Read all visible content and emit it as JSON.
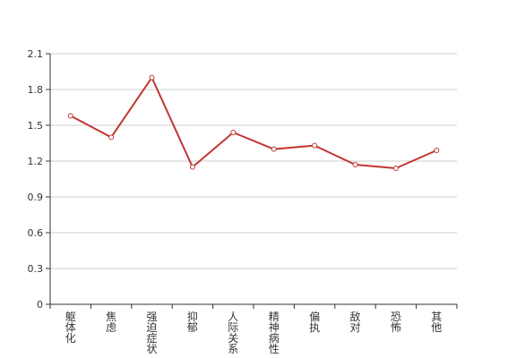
{
  "chart_data": {
    "type": "line",
    "title": "",
    "xlabel": "",
    "ylabel": "",
    "categories": [
      "躯体化",
      "焦虑",
      "强迫症状",
      "抑郁",
      "人际关系敏感",
      "精神病性",
      "偏执",
      "敌对",
      "恐怖",
      "其他"
    ],
    "series": [
      {
        "values": [
          1.58,
          1.4,
          1.9,
          1.15,
          1.44,
          1.3,
          1.33,
          1.17,
          1.14,
          1.29
        ]
      }
    ],
    "ylim": [
      0,
      2.1
    ],
    "yticks": [
      "0",
      "0.3",
      "0.6",
      "0.9",
      "1.2",
      "1.5",
      "1.8",
      "2.1"
    ],
    "grid": true,
    "legend": "none",
    "colors": {
      "line": "#c23531",
      "grid": "#cccccc",
      "axis": "#333333",
      "marker_fill": "#ffffff"
    }
  }
}
